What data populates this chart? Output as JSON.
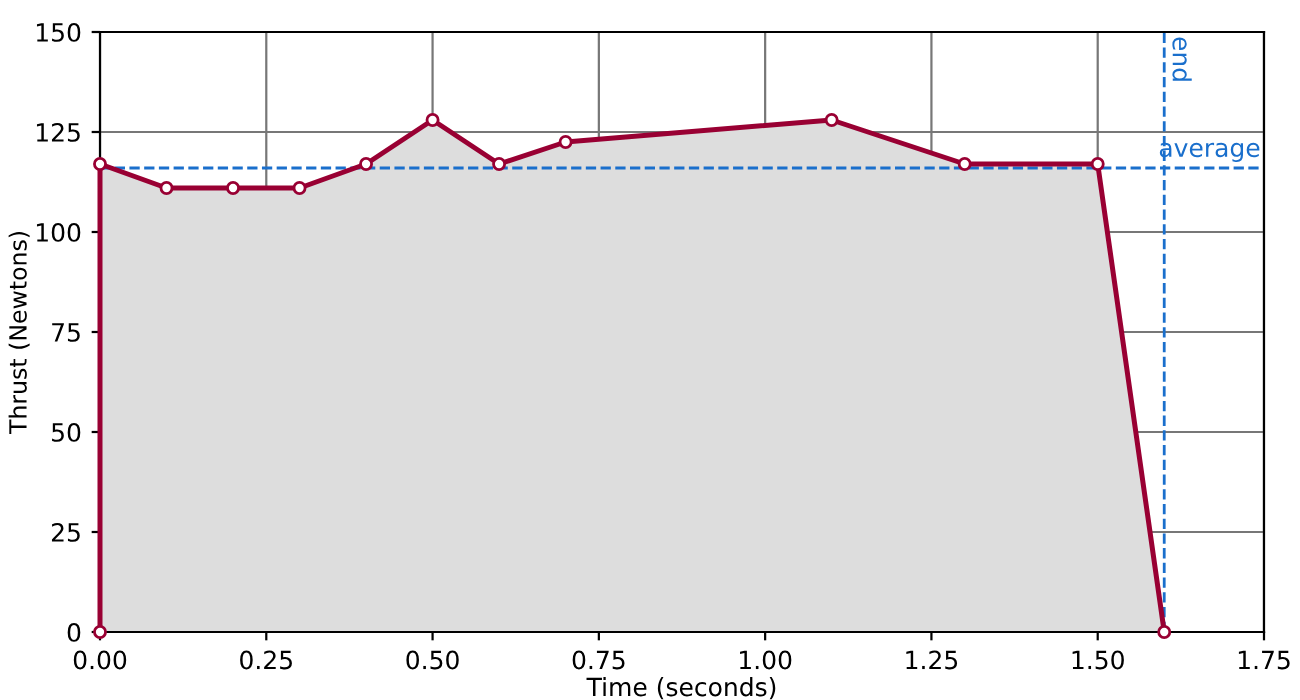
{
  "chart_data": {
    "type": "area",
    "xlabel": "Time (seconds)",
    "ylabel": "Thrust (Newtons)",
    "x": [
      0,
      0,
      0.1,
      0.2,
      0.3,
      0.4,
      0.5,
      0.6,
      0.7,
      1.1,
      1.3,
      1.5,
      1.6
    ],
    "series": [
      {
        "color": "#990033",
        "values": [
          0,
          117,
          111,
          111,
          111,
          117,
          128,
          117,
          122.5,
          128,
          117,
          117,
          0
        ]
      }
    ],
    "xlim": [
      0,
      1.75
    ],
    "xticks": [
      {
        "value": 0,
        "label": "0.00"
      },
      0.25,
      {
        "value": 0.5,
        "label": "0.50"
      },
      0.75,
      {
        "value": 1,
        "label": "1.00"
      },
      1.25,
      {
        "value": 1.5,
        "label": "1.50"
      },
      1.75
    ],
    "ylim": [
      0,
      150
    ],
    "yticks": [
      0,
      25,
      50,
      75,
      100,
      125,
      150
    ],
    "ref_lines": [
      {
        "axis": "y",
        "value": 116,
        "label": "average",
        "color": "#1a6fcc",
        "line_style": "dashed"
      },
      {
        "axis": "x",
        "value": 1.6,
        "label": "end",
        "color": "#1a6fcc",
        "line_style": "dashed"
      }
    ],
    "grid": true,
    "marker": "circle",
    "line_style": "solid"
  }
}
